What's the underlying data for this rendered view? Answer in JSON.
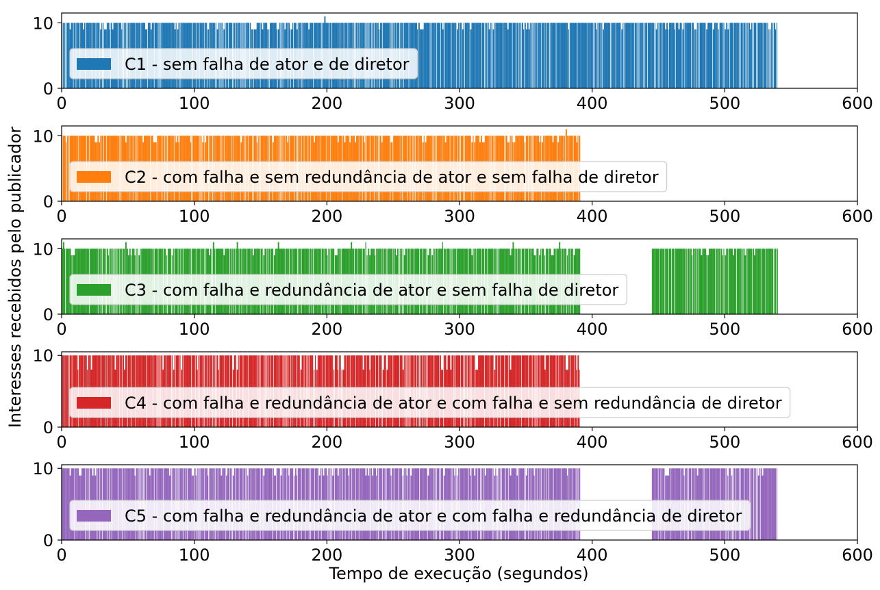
{
  "figure": {
    "ylabel": "Interesses recebidos pelo publicador",
    "xlabel": "Tempo de execução (segundos)"
  },
  "chart_data": [
    {
      "type": "bar",
      "legend": "C1 - sem falha de ator e de diretor",
      "color": "#1f77b4",
      "xlim": [
        0,
        600
      ],
      "ylim": [
        0,
        11.5
      ],
      "xticks": [
        0,
        100,
        200,
        300,
        400,
        500,
        600
      ],
      "yticks": [
        0,
        10
      ],
      "legend_position": "center-left",
      "segments": [
        {
          "start": 0,
          "end": 539
        }
      ],
      "typical_value": 10,
      "min_value": 9,
      "max_value": 11,
      "spikes": [
        {
          "x": 198,
          "y": 11
        }
      ]
    },
    {
      "type": "bar",
      "legend": "C2 - com falha e sem redundância de ator e sem falha de diretor",
      "color": "#ff7f0e",
      "xlim": [
        0,
        600
      ],
      "ylim": [
        0,
        11.5
      ],
      "xticks": [
        0,
        100,
        200,
        300,
        400,
        500,
        600
      ],
      "yticks": [
        0,
        10
      ],
      "legend_position": "center-left",
      "segments": [
        {
          "start": 0,
          "end": 390
        }
      ],
      "typical_value": 10,
      "min_value": 9,
      "max_value": 11,
      "spikes": [
        {
          "x": 380,
          "y": 11
        }
      ]
    },
    {
      "type": "bar",
      "legend": "C3 - com falha e redundância de ator e sem falha de diretor",
      "color": "#2ca02c",
      "xlim": [
        0,
        600
      ],
      "ylim": [
        0,
        11.5
      ],
      "xticks": [
        0,
        100,
        200,
        300,
        400,
        500,
        600
      ],
      "yticks": [
        0,
        10
      ],
      "legend_position": "center-left",
      "segments": [
        {
          "start": 0,
          "end": 390
        },
        {
          "start": 445,
          "end": 539
        }
      ],
      "typical_value": 10,
      "min_value": 9,
      "max_value": 11,
      "spikes": [
        {
          "x": 1,
          "y": 11
        },
        {
          "x": 48,
          "y": 11
        },
        {
          "x": 114,
          "y": 11
        },
        {
          "x": 132,
          "y": 11
        },
        {
          "x": 163,
          "y": 11
        },
        {
          "x": 218,
          "y": 11
        },
        {
          "x": 229,
          "y": 11
        },
        {
          "x": 287,
          "y": 11
        },
        {
          "x": 340,
          "y": 11
        },
        {
          "x": 375,
          "y": 11
        },
        {
          "x": 540,
          "y": 2
        }
      ]
    },
    {
      "type": "bar",
      "legend": "C4 - com falha e redundância de ator e com falha e sem redundância de diretor",
      "color": "#d62728",
      "xlim": [
        0,
        600
      ],
      "ylim": [
        0,
        10.5
      ],
      "xticks": [
        0,
        100,
        200,
        300,
        400,
        500,
        600
      ],
      "yticks": [
        0,
        10
      ],
      "legend_position": "center-left",
      "segments": [
        {
          "start": 0,
          "end": 390
        }
      ],
      "typical_value": 10,
      "min_value": 8,
      "max_value": 10,
      "spikes": [
        {
          "x": 390,
          "y": 8
        }
      ]
    },
    {
      "type": "bar",
      "legend": "C5 - com falha e redundância de ator e com falha e redundância de diretor",
      "color": "#9467bd",
      "xlim": [
        0,
        600
      ],
      "ylim": [
        0,
        10.5
      ],
      "xticks": [
        0,
        100,
        200,
        300,
        400,
        500,
        600
      ],
      "yticks": [
        0,
        10
      ],
      "legend_position": "center-left",
      "segments": [
        {
          "start": 0,
          "end": 390
        },
        {
          "start": 445,
          "end": 539
        }
      ],
      "typical_value": 10,
      "min_value": 9,
      "max_value": 10,
      "spikes": [
        {
          "x": 540,
          "y": 3
        }
      ]
    }
  ]
}
